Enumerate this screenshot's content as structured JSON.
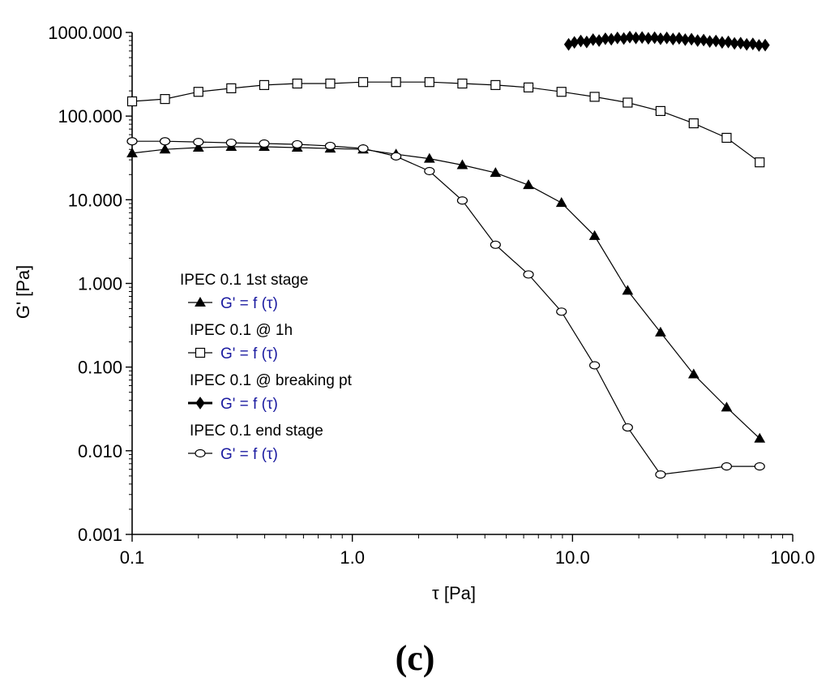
{
  "chart_data": {
    "type": "line",
    "xscale": "log",
    "yscale": "log",
    "xlim": [
      0.1,
      100
    ],
    "ylim": [
      0.001,
      1000
    ],
    "xlabel": "τ  [Pa]",
    "ylabel": "G'  [Pa]",
    "x_ticks": [
      "0.1",
      "1.0",
      "10.0",
      "100.0"
    ],
    "y_ticks": [
      "0.001",
      "0.010",
      "0.100",
      "1.000",
      "10.000",
      "100.000",
      "1000.000"
    ],
    "panel_label": "(c)",
    "grid": false,
    "legend_position": "center-left",
    "series": [
      {
        "name": "IPEC 0.1 1st stage",
        "function_label": "G' = f (τ)",
        "marker": "filled-triangle",
        "x": [
          0.1,
          0.141,
          0.2,
          0.282,
          0.398,
          0.562,
          0.794,
          1.12,
          1.58,
          2.24,
          3.16,
          4.47,
          6.31,
          8.91,
          12.6,
          17.8,
          25.1,
          35.5,
          50.1,
          70.8
        ],
        "y": [
          36,
          40,
          42,
          43,
          43,
          42,
          41,
          40,
          35,
          31,
          26,
          21,
          15,
          9.2,
          3.7,
          0.82,
          0.26,
          0.082,
          0.033,
          0.014
        ]
      },
      {
        "name": "IPEC 0.1 @ 1h",
        "function_label": "G' = f (τ)",
        "marker": "open-square",
        "x": [
          0.1,
          0.141,
          0.2,
          0.282,
          0.398,
          0.562,
          0.794,
          1.12,
          1.58,
          2.24,
          3.16,
          4.47,
          6.31,
          8.91,
          12.6,
          17.8,
          25.1,
          35.5,
          50.1,
          70.8
        ],
        "y": [
          150,
          160,
          195,
          215,
          235,
          245,
          245,
          255,
          255,
          255,
          245,
          235,
          220,
          195,
          170,
          145,
          115,
          82,
          55,
          28
        ]
      },
      {
        "name": "IPEC 0.1 @ breaking pt",
        "function_label": "G' = f (τ)",
        "marker": "filled-diamond",
        "x": [
          9.6,
          10.2,
          10.9,
          11.6,
          12.4,
          13.2,
          14.1,
          15.0,
          16.0,
          17.1,
          18.2,
          19.4,
          20.7,
          22.1,
          23.6,
          25.1,
          26.8,
          28.6,
          30.5,
          32.5,
          34.7,
          37.0,
          39.4,
          42.0,
          44.8,
          47.8,
          51.0,
          54.4,
          58.0,
          61.8,
          65.9,
          70.3,
          75.0
        ],
        "y": [
          720,
          760,
          790,
          770,
          820,
          800,
          840,
          830,
          860,
          845,
          880,
          860,
          870,
          850,
          865,
          840,
          860,
          835,
          850,
          820,
          830,
          800,
          810,
          780,
          790,
          760,
          770,
          740,
          745,
          720,
          730,
          700,
          705
        ]
      },
      {
        "name": "IPEC 0.1 end stage",
        "function_label": "G' = f (τ)",
        "marker": "open-circle",
        "x": [
          0.1,
          0.141,
          0.2,
          0.282,
          0.398,
          0.562,
          0.794,
          1.12,
          1.58,
          2.24,
          3.16,
          4.47,
          6.31,
          8.91,
          12.6,
          17.8,
          25.1,
          50.1,
          70.8
        ],
        "y": [
          50,
          50,
          49,
          48,
          47,
          46,
          44,
          41,
          33,
          22,
          9.8,
          2.9,
          1.28,
          0.46,
          0.105,
          0.019,
          0.0052,
          0.0065,
          0.0065
        ]
      }
    ]
  }
}
